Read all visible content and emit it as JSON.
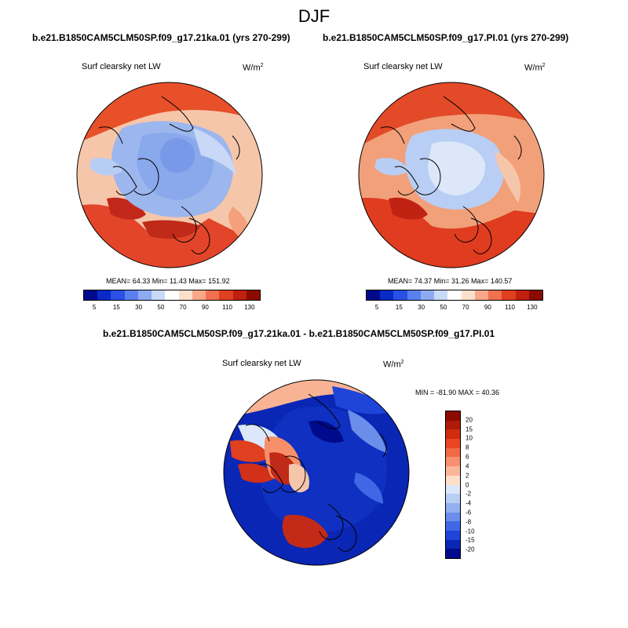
{
  "figure": {
    "season": "DJF",
    "run_a_title": "b.e21.B1850CAM5CLM50SP.f09_g17.21ka.01 (yrs 270-299)",
    "run_b_title": "b.e21.B1850CAM5CLM50SP.f09_g17.PI.01 (yrs 270-299)",
    "diff_title": "b.e21.B1850CAM5CLM50SP.f09_g17.21ka.01 - b.e21.B1850CAM5CLM50SP.f09_g17.PI.01"
  },
  "panels": {
    "left": {
      "variable": "Surf clearsky net LW",
      "units_base": "W/m",
      "units_exp": "2",
      "stats": "MEAN=  64.33  Min=  11.43  Max= 151.92"
    },
    "right": {
      "variable": "Surf clearsky net LW",
      "units_base": "W/m",
      "units_exp": "2",
      "stats": "MEAN=  74.37  Min=  31.26  Max= 140.57"
    },
    "diff": {
      "variable": "Surf clearsky net LW",
      "units_base": "W/m",
      "units_exp": "2",
      "stats": "MIN = -81.90 MAX =  40.36"
    }
  },
  "colorbars": {
    "abs_ticks": [
      "5",
      "15",
      "30",
      "50",
      "70",
      "90",
      "110",
      "130"
    ],
    "abs_colors": [
      "#000a8c",
      "#0a2ac8",
      "#2a50e6",
      "#5a80f0",
      "#8eaaf2",
      "#c8daf8",
      "#ffffff",
      "#fde0cc",
      "#f8a888",
      "#f07050",
      "#e04020",
      "#c02010",
      "#8c0a00"
    ],
    "diff_ticks": [
      "20",
      "15",
      "10",
      "8",
      "6",
      "4",
      "2",
      "0",
      "-2",
      "-4",
      "-6",
      "-8",
      "-10",
      "-15",
      "-20"
    ],
    "diff_colors": [
      "#8c0a00",
      "#b01a08",
      "#d02c10",
      "#e84520",
      "#f26a44",
      "#f79070",
      "#fbb69a",
      "#fde0cc",
      "#dce8fa",
      "#b8cef4",
      "#92b0ee",
      "#6a8eea",
      "#4068e6",
      "#1f44d8",
      "#0a26b4",
      "#000a8c"
    ]
  }
}
